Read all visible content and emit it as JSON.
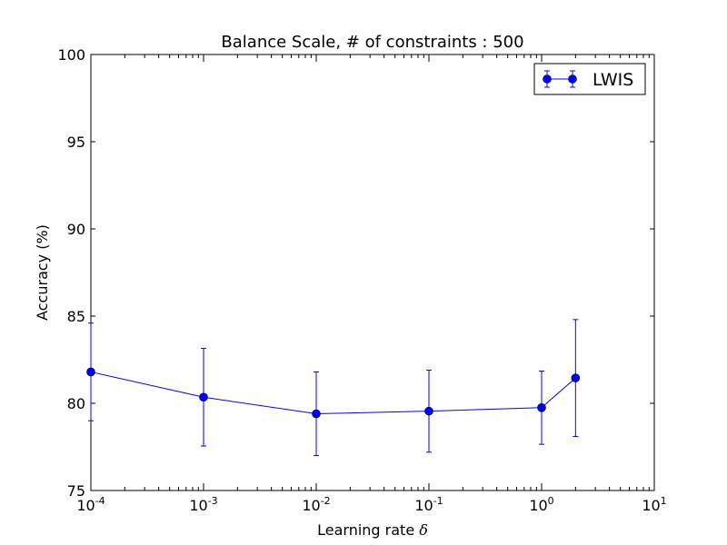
{
  "chart_data": {
    "type": "line",
    "title": "Balance Scale, # of constraints : 500",
    "xlabel": "Learning rate",
    "xlabel_symbol": "δ",
    "ylabel": "Accuracy (%)",
    "x_scale": "log",
    "xlim": [
      0.0001,
      10
    ],
    "ylim": [
      75,
      100
    ],
    "x_ticks": [
      {
        "value": 0.0001,
        "base": "10",
        "exp": "-4"
      },
      {
        "value": 0.001,
        "base": "10",
        "exp": "-3"
      },
      {
        "value": 0.01,
        "base": "10",
        "exp": "-2"
      },
      {
        "value": 0.1,
        "base": "10",
        "exp": "-1"
      },
      {
        "value": 1,
        "base": "10",
        "exp": "0"
      },
      {
        "value": 10,
        "base": "10",
        "exp": "1"
      }
    ],
    "y_ticks": [
      75,
      80,
      85,
      90,
      95,
      100
    ],
    "grid": false,
    "legend_position": "top-right",
    "series": [
      {
        "name": "LWIS",
        "color": "#0000ff",
        "marker": "circle",
        "x": [
          0.0001,
          0.001,
          0.01,
          0.1,
          1,
          2
        ],
        "y": [
          81.8,
          80.35,
          79.4,
          79.55,
          79.75,
          81.45
        ],
        "err": [
          2.8,
          2.8,
          2.4,
          2.35,
          2.1,
          3.35
        ]
      }
    ]
  }
}
